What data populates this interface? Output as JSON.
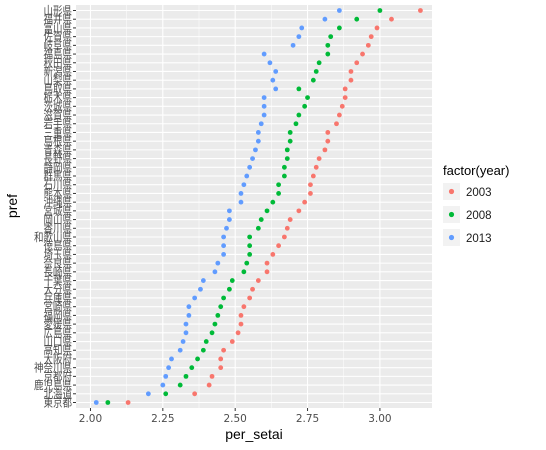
{
  "chart_data": {
    "type": "scatter",
    "title": "",
    "xlabel": "per_setai",
    "ylabel": "pref",
    "xlim": [
      1.95,
      3.18
    ],
    "xticks": [
      2.0,
      2.25,
      2.5,
      2.75,
      3.0
    ],
    "xtick_labels": [
      "2.00",
      "2.25",
      "2.50",
      "2.75",
      "3.00"
    ],
    "grid": true,
    "legend_position": "right",
    "legend_title": "factor(year)",
    "colors": {
      "2003": "#F8766D",
      "2008": "#00BA38",
      "2013": "#619CFF"
    },
    "categories": [
      "東京都",
      "北海道",
      "鹿児島県",
      "京都府",
      "神奈川県",
      "大阪府",
      "高知県",
      "山口県",
      "広島県",
      "愛媛県",
      "福岡県",
      "宮崎県",
      "兵庫県",
      "大分県",
      "千葉県",
      "長崎県",
      "奈良県",
      "埼玉県",
      "徳島県",
      "和歌山県",
      "香川県",
      "岡山県",
      "宮城県",
      "沖縄県",
      "熊本県",
      "石川県",
      "群馬県",
      "静岡県",
      "長野県",
      "青森県",
      "島根県",
      "三重県",
      "岩手県",
      "滋賀県",
      "茨城県",
      "栃木県",
      "鳥取県",
      "山梨県",
      "新潟県",
      "秋田県",
      "福島県",
      "岐阜県",
      "佐賀県",
      "富山県",
      "福井県",
      "山形県"
    ],
    "series": [
      {
        "name": "2003",
        "values": [
          2.13,
          2.36,
          2.41,
          2.42,
          2.45,
          2.45,
          2.46,
          2.49,
          2.51,
          2.52,
          2.52,
          2.53,
          2.55,
          2.56,
          2.58,
          2.61,
          2.61,
          2.63,
          2.65,
          2.67,
          2.68,
          2.69,
          2.72,
          2.74,
          2.76,
          2.76,
          2.77,
          2.78,
          2.79,
          2.81,
          2.82,
          2.82,
          2.85,
          2.86,
          2.87,
          2.88,
          2.88,
          2.9,
          2.9,
          2.92,
          2.94,
          2.96,
          2.97,
          2.99,
          3.04,
          3.14
        ]
      },
      {
        "name": "2008",
        "values": [
          2.06,
          2.26,
          2.31,
          2.33,
          2.35,
          2.37,
          2.39,
          2.4,
          2.42,
          2.43,
          2.44,
          2.45,
          2.46,
          2.48,
          2.49,
          2.53,
          2.54,
          2.55,
          2.55,
          2.55,
          2.58,
          2.59,
          2.61,
          2.63,
          2.65,
          2.65,
          2.67,
          2.67,
          2.68,
          2.68,
          2.69,
          2.69,
          2.71,
          2.72,
          2.74,
          2.75,
          2.72,
          2.77,
          2.78,
          2.79,
          2.82,
          2.82,
          2.83,
          2.86,
          2.92,
          3.0
        ]
      },
      {
        "name": "2013",
        "values": [
          2.02,
          2.2,
          2.25,
          2.26,
          2.27,
          2.28,
          2.31,
          2.32,
          2.33,
          2.33,
          2.34,
          2.34,
          2.36,
          2.38,
          2.39,
          2.43,
          2.44,
          2.46,
          2.46,
          2.46,
          2.47,
          2.48,
          2.48,
          2.52,
          2.52,
          2.53,
          2.54,
          2.55,
          2.56,
          2.57,
          2.58,
          2.58,
          2.59,
          2.6,
          2.6,
          2.6,
          2.64,
          2.63,
          2.64,
          2.62,
          2.6,
          2.7,
          2.72,
          2.73,
          2.81,
          2.86
        ]
      }
    ]
  }
}
